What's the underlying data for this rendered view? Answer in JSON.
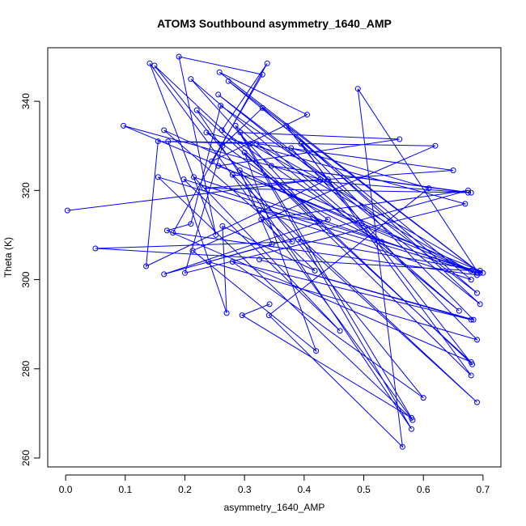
{
  "chart_data": {
    "type": "line",
    "title": "ATOM3 Southbound asymmetry_1640_AMP",
    "xlabel": "asymmetry_1640_AMP",
    "ylabel": "Theta (K)",
    "xlim": [
      -0.03,
      0.73
    ],
    "ylim": [
      258,
      352
    ],
    "x_ticks": [
      0.0,
      0.1,
      0.2,
      0.3,
      0.4,
      0.5,
      0.6,
      0.7
    ],
    "y_ticks": [
      260,
      280,
      300,
      320,
      340
    ],
    "x_tick_labels": [
      "0.0",
      "0.1",
      "0.2",
      "0.3",
      "0.4",
      "0.5",
      "0.6",
      "0.7"
    ],
    "y_tick_labels": [
      "260",
      "280",
      "300",
      "320",
      "340"
    ],
    "grid": false,
    "legend": "none",
    "marker": "open-circle",
    "color": "#0000ff",
    "series": [
      {
        "x": [
          0.003,
          0.427,
          0.097,
          0.68,
          0.05,
          0.38,
          0.165,
          0.69,
          0.155,
          0.582,
          0.141,
          0.252,
          0.19,
          0.33,
          0.245,
          0.405,
          0.258,
          0.695,
          0.273,
          0.68,
          0.325,
          0.425,
          0.21,
          0.66,
          0.285,
          0.58,
          0.22,
          0.68,
          0.17,
          0.21,
          0.26,
          0.44,
          0.135,
          0.155,
          0.31,
          0.69,
          0.18,
          0.338,
          0.262,
          0.53,
          0.292,
          0.346,
          0.165,
          0.44,
          0.236,
          0.67,
          0.2,
          0.263,
          0.33,
          0.69,
          0.256,
          0.695,
          0.37,
          0.682,
          0.149,
          0.6,
          0.28,
          0.68,
          0.325,
          0.684,
          0.395,
          0.68,
          0.3,
          0.42,
          0.213,
          0.62,
          0.172,
          0.27,
          0.263,
          0.418,
          0.328,
          0.675,
          0.24,
          0.69,
          0.378,
          0.609,
          0.341,
          0.565,
          0.49,
          0.692,
          0.215,
          0.46,
          0.198,
          0.7,
          0.32,
          0.65,
          0.232,
          0.68,
          0.345,
          0.675,
          0.28,
          0.69,
          0.39,
          0.695,
          0.256,
          0.56,
          0.293,
          0.58,
          0.296,
          0.342
        ],
        "y": [
          315.5,
          322.5,
          334.5,
          302,
          307,
          308.5,
          333.5,
          301.5,
          323,
          268.5,
          348.5,
          310,
          350,
          346,
          326.5,
          337,
          346.5,
          301.5,
          344.5,
          300,
          315.5,
          313,
          345,
          293,
          334.5,
          266.5,
          338,
          281.5,
          311,
          312.5,
          339,
          322.5,
          303,
          331,
          330.5,
          301,
          310.5,
          348.5,
          333.5,
          308.5,
          324.5,
          308,
          301.2,
          313.5,
          333,
          317,
          301.5,
          330,
          338.5,
          297,
          341.5,
          294.5,
          334.5,
          281,
          348,
          273.5,
          304,
          291,
          304.5,
          291,
          330.5,
          278.5,
          328.5,
          284,
          306.5,
          330,
          331,
          292.5,
          312,
          302,
          313.5,
          320,
          304,
          286.5,
          329.5,
          320.5,
          292,
          262.5,
          342.8,
          301.5,
          323,
          288.5,
          322.5,
          301.5,
          330.5,
          324.5,
          320.5,
          319.5,
          325.5,
          319.5,
          323.5,
          272.5,
          309,
          302,
          325.5,
          331.5,
          333,
          269,
          292,
          294.5
        ]
      }
    ]
  }
}
